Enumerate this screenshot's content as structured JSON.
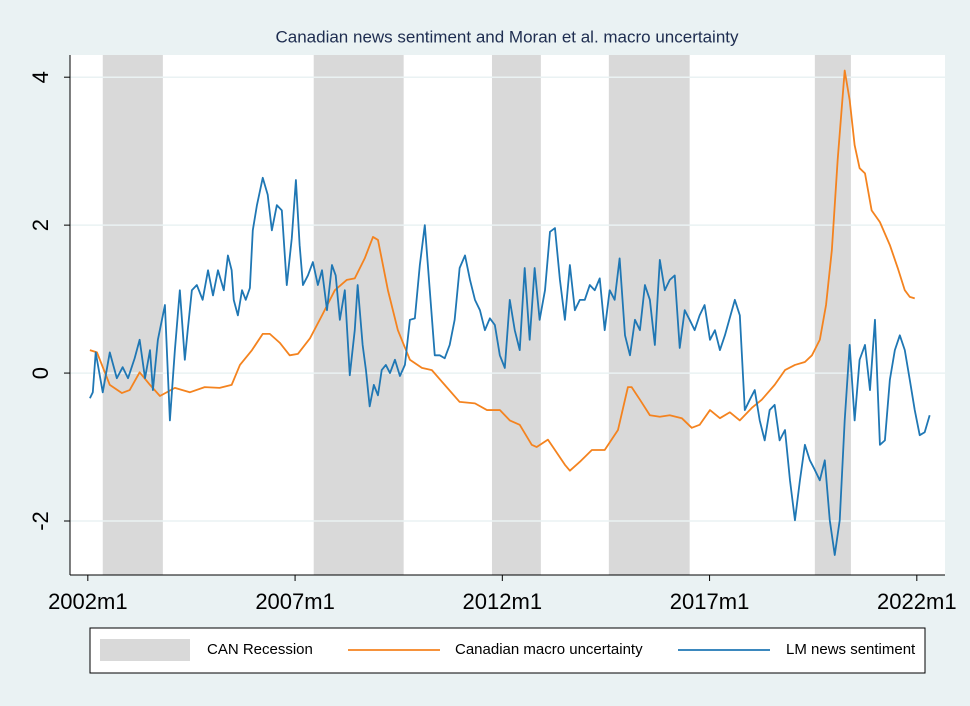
{
  "chart_data": {
    "type": "line",
    "title": "Canadian news sentiment and Moran et al. macro uncertainty",
    "xlim": [
      2001.57,
      2022.68
    ],
    "xticks": [
      {
        "value": 2002,
        "label": "2002m1"
      },
      {
        "value": 2007,
        "label": "2007m1"
      },
      {
        "value": 2012,
        "label": "2012m1"
      },
      {
        "value": 2017,
        "label": "2017m1"
      },
      {
        "value": 2022,
        "label": "2022m1"
      }
    ],
    "ylim": [
      -2.73,
      4.3
    ],
    "yticks": [
      -2,
      0,
      2,
      4
    ],
    "grid": true,
    "legend": "bottom",
    "recessions": {
      "name": "CAN Recession",
      "color": "#d9d9d9",
      "periods": [
        [
          2002.36,
          2003.81
        ],
        [
          2007.45,
          2009.62
        ],
        [
          2011.75,
          2012.93
        ],
        [
          2014.57,
          2016.52
        ],
        [
          2019.54,
          2020.41
        ]
      ]
    },
    "series": [
      {
        "name": "Canadian macro uncertainty",
        "color": "#f4831f",
        "x": [
          2002.05,
          2002.22,
          2002.53,
          2002.82,
          2003.01,
          2003.25,
          2003.5,
          2003.74,
          2004.1,
          2004.46,
          2004.82,
          2005.18,
          2005.47,
          2005.67,
          2005.96,
          2006.22,
          2006.39,
          2006.63,
          2006.87,
          2007.07,
          2007.36,
          2007.65,
          2007.96,
          2008.25,
          2008.44,
          2008.68,
          2008.88,
          2009.0,
          2009.24,
          2009.48,
          2009.77,
          2010.06,
          2010.3,
          2010.61,
          2010.97,
          2011.34,
          2011.63,
          2011.94,
          2012.18,
          2012.42,
          2012.71,
          2012.83,
          2013.1,
          2013.27,
          2013.51,
          2013.63,
          2013.87,
          2014.16,
          2014.47,
          2014.79,
          2015.03,
          2015.12,
          2015.32,
          2015.56,
          2015.8,
          2016.04,
          2016.33,
          2016.57,
          2016.76,
          2017.01,
          2017.25,
          2017.49,
          2017.73,
          2018.02,
          2018.26,
          2018.57,
          2018.82,
          2019.06,
          2019.3,
          2019.47,
          2019.66,
          2019.81,
          2019.95,
          2020.09,
          2020.26,
          2020.38,
          2020.5,
          2020.62,
          2020.75,
          2020.91,
          2021.11,
          2021.35,
          2021.54,
          2021.71,
          2021.83,
          2021.95
        ],
        "values": [
          0.31,
          0.28,
          -0.16,
          -0.27,
          -0.23,
          0.01,
          -0.16,
          -0.31,
          -0.2,
          -0.26,
          -0.19,
          -0.2,
          -0.16,
          0.11,
          0.31,
          0.53,
          0.53,
          0.41,
          0.24,
          0.26,
          0.47,
          0.78,
          1.12,
          1.26,
          1.28,
          1.55,
          1.84,
          1.8,
          1.12,
          0.58,
          0.18,
          0.07,
          0.04,
          -0.16,
          -0.39,
          -0.41,
          -0.5,
          -0.5,
          -0.64,
          -0.7,
          -0.97,
          -1.0,
          -0.9,
          -1.04,
          -1.24,
          -1.32,
          -1.2,
          -1.04,
          -1.04,
          -0.77,
          -0.19,
          -0.19,
          -0.36,
          -0.57,
          -0.59,
          -0.57,
          -0.61,
          -0.74,
          -0.7,
          -0.5,
          -0.61,
          -0.53,
          -0.64,
          -0.47,
          -0.36,
          -0.16,
          0.04,
          0.11,
          0.15,
          0.24,
          0.45,
          0.92,
          1.66,
          2.88,
          4.09,
          3.69,
          3.08,
          2.77,
          2.7,
          2.2,
          2.04,
          1.73,
          1.42,
          1.12,
          1.03,
          1.01
        ]
      },
      {
        "name": "LM news sentiment",
        "color": "#1f77b4",
        "x": [
          2002.05,
          2002.12,
          2002.19,
          2002.36,
          2002.53,
          2002.7,
          2002.84,
          2002.97,
          2003.13,
          2003.25,
          2003.38,
          2003.5,
          2003.57,
          2003.69,
          2003.86,
          2003.98,
          2004.1,
          2004.22,
          2004.34,
          2004.41,
          2004.51,
          2004.63,
          2004.77,
          2004.9,
          2005.02,
          2005.14,
          2005.28,
          2005.38,
          2005.47,
          2005.52,
          2005.62,
          2005.72,
          2005.81,
          2005.91,
          2005.98,
          2006.08,
          2006.22,
          2006.34,
          2006.44,
          2006.56,
          2006.68,
          2006.8,
          2006.92,
          2007.02,
          2007.11,
          2007.19,
          2007.31,
          2007.43,
          2007.55,
          2007.65,
          2007.77,
          2007.89,
          2007.98,
          2008.08,
          2008.2,
          2008.32,
          2008.44,
          2008.51,
          2008.63,
          2008.71,
          2008.8,
          2008.9,
          2009.0,
          2009.09,
          2009.19,
          2009.29,
          2009.41,
          2009.53,
          2009.65,
          2009.77,
          2009.89,
          2010.01,
          2010.13,
          2010.25,
          2010.37,
          2010.49,
          2010.61,
          2010.73,
          2010.85,
          2010.97,
          2011.1,
          2011.22,
          2011.34,
          2011.46,
          2011.58,
          2011.7,
          2011.82,
          2011.94,
          2012.06,
          2012.18,
          2012.3,
          2012.42,
          2012.54,
          2012.66,
          2012.78,
          2012.9,
          2013.03,
          2013.15,
          2013.27,
          2013.39,
          2013.51,
          2013.63,
          2013.75,
          2013.87,
          2013.99,
          2014.11,
          2014.23,
          2014.35,
          2014.47,
          2014.59,
          2014.71,
          2014.83,
          2014.96,
          2015.08,
          2015.2,
          2015.32,
          2015.44,
          2015.56,
          2015.68,
          2015.8,
          2015.92,
          2016.04,
          2016.16,
          2016.28,
          2016.4,
          2016.52,
          2016.64,
          2016.76,
          2016.88,
          2017.01,
          2017.13,
          2017.25,
          2017.37,
          2017.61,
          2017.73,
          2017.85,
          2017.97,
          2018.09,
          2018.21,
          2018.33,
          2018.45,
          2018.57,
          2018.69,
          2018.82,
          2018.94,
          2019.06,
          2019.18,
          2019.3,
          2019.42,
          2019.54,
          2019.66,
          2019.78,
          2019.9,
          2020.02,
          2020.14,
          2020.26,
          2020.38,
          2020.5,
          2020.62,
          2020.75,
          2020.87,
          2020.99,
          2021.11,
          2021.23,
          2021.35,
          2021.47,
          2021.59,
          2021.71,
          2021.83,
          2021.95,
          2022.07,
          2022.19,
          2022.31
        ],
        "values": [
          -0.34,
          -0.26,
          0.28,
          -0.26,
          0.28,
          -0.07,
          0.08,
          -0.07,
          0.2,
          0.45,
          -0.07,
          0.31,
          -0.23,
          0.45,
          0.92,
          -0.64,
          0.31,
          1.12,
          0.18,
          0.58,
          1.12,
          1.19,
          0.99,
          1.39,
          1.05,
          1.39,
          1.12,
          1.59,
          1.39,
          0.99,
          0.78,
          1.12,
          0.99,
          1.15,
          1.93,
          2.27,
          2.64,
          2.41,
          1.93,
          2.27,
          2.2,
          1.19,
          1.82,
          2.61,
          1.73,
          1.19,
          1.32,
          1.5,
          1.19,
          1.39,
          0.85,
          1.46,
          1.32,
          0.72,
          1.12,
          -0.03,
          0.58,
          1.19,
          0.38,
          0.04,
          -0.45,
          -0.16,
          -0.3,
          0.04,
          0.11,
          0,
          0.18,
          -0.04,
          0.11,
          0.72,
          0.74,
          1.46,
          2.0,
          1.12,
          0.24,
          0.24,
          0.2,
          0.38,
          0.72,
          1.42,
          1.59,
          1.26,
          0.99,
          0.85,
          0.58,
          0.74,
          0.65,
          0.24,
          0.07,
          0.99,
          0.58,
          0.31,
          1.42,
          0.45,
          1.42,
          0.72,
          1.12,
          1.91,
          1.96,
          1.26,
          0.72,
          1.46,
          0.85,
          0.99,
          0.99,
          1.19,
          1.12,
          1.28,
          0.58,
          1.12,
          0.99,
          1.55,
          0.51,
          0.24,
          0.72,
          0.58,
          1.19,
          0.99,
          0.38,
          1.53,
          1.12,
          1.26,
          1.32,
          0.34,
          0.85,
          0.72,
          0.58,
          0.78,
          0.92,
          0.45,
          0.58,
          0.31,
          0.51,
          0.99,
          0.78,
          -0.5,
          -0.36,
          -0.23,
          -0.64,
          -0.91,
          -0.5,
          -0.43,
          -0.91,
          -0.77,
          -1.45,
          -1.99,
          -1.45,
          -0.97,
          -1.18,
          -1.31,
          -1.45,
          -1.18,
          -1.99,
          -2.46,
          -1.99,
          -0.64,
          0.38,
          -0.64,
          0.18,
          0.38,
          -0.23,
          0.72,
          -0.97,
          -0.91,
          -0.09,
          0.31,
          0.51,
          0.31,
          -0.09,
          -0.5,
          -0.84,
          -0.8,
          -0.57
        ]
      }
    ]
  }
}
